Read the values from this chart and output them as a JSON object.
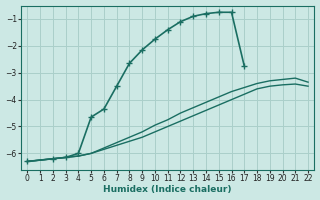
{
  "xlabel": "Humidex (Indice chaleur)",
  "bg_color": "#cce8e4",
  "grid_color": "#aacfca",
  "line_color": "#1a6e62",
  "xlim": [
    -0.5,
    22.5
  ],
  "ylim": [
    -6.6,
    -0.5
  ],
  "xticks": [
    0,
    1,
    2,
    3,
    4,
    5,
    6,
    7,
    8,
    9,
    10,
    11,
    12,
    13,
    14,
    15,
    16,
    17,
    18,
    19,
    20,
    21,
    22
  ],
  "yticks": [
    -6,
    -5,
    -4,
    -3,
    -2,
    -1
  ],
  "curve1_x": [
    0,
    2,
    3,
    4,
    5,
    6,
    7,
    8,
    9,
    10,
    11,
    12,
    13,
    14,
    15,
    16,
    17
  ],
  "curve1_y": [
    -6.3,
    -6.2,
    -6.15,
    -6.0,
    -4.65,
    -4.35,
    -3.5,
    -2.65,
    -2.15,
    -1.75,
    -1.4,
    -1.1,
    -0.9,
    -0.8,
    -0.75,
    -0.75,
    -2.75
  ],
  "curve2_x": [
    0,
    2,
    3,
    4,
    5,
    6,
    7,
    8,
    9,
    10,
    11,
    12,
    13,
    14,
    15,
    16,
    17,
    18,
    19,
    20,
    21,
    22
  ],
  "curve2_y": [
    -6.3,
    -6.2,
    -6.15,
    -6.1,
    -6.0,
    -5.85,
    -5.7,
    -5.55,
    -5.4,
    -5.2,
    -5.0,
    -4.8,
    -4.6,
    -4.4,
    -4.2,
    -4.0,
    -3.8,
    -3.6,
    -3.5,
    -3.45,
    -3.42,
    -3.5
  ],
  "curve3_x": [
    0,
    2,
    3,
    4,
    5,
    6,
    7,
    8,
    9,
    10,
    11,
    12,
    13,
    14,
    15,
    16,
    17,
    18,
    19,
    20,
    21,
    22
  ],
  "curve3_y": [
    -6.3,
    -6.2,
    -6.15,
    -6.1,
    -6.0,
    -5.8,
    -5.6,
    -5.4,
    -5.2,
    -4.95,
    -4.75,
    -4.5,
    -4.3,
    -4.1,
    -3.9,
    -3.7,
    -3.55,
    -3.4,
    -3.3,
    -3.25,
    -3.2,
    -3.35
  ]
}
